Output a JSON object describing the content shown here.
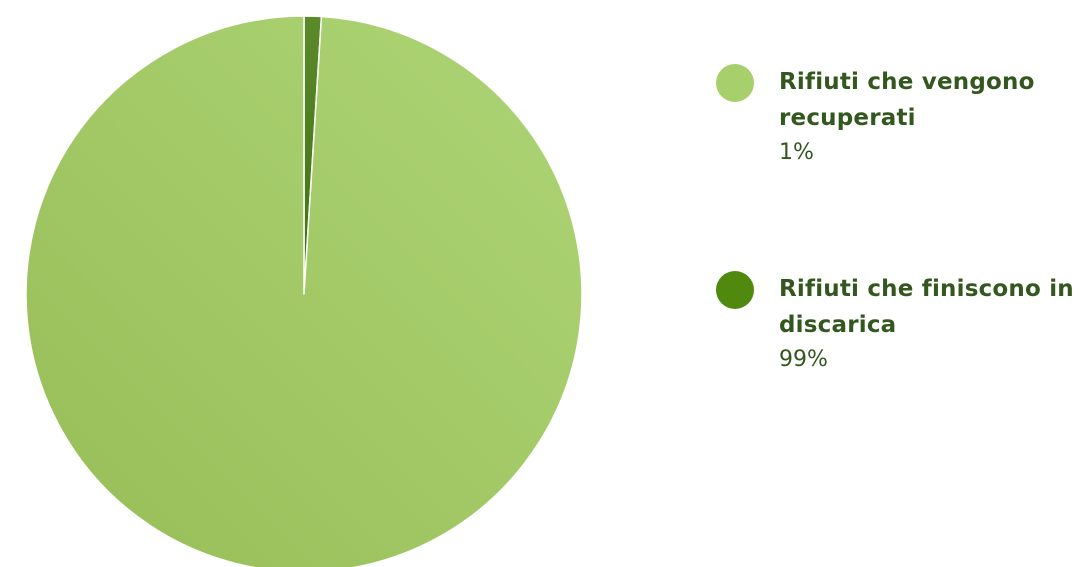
{
  "chart_data": {
    "type": "pie",
    "title": "",
    "slices": [
      {
        "label": "Rifiuti che vengono recuperati",
        "value": 1,
        "value_label": "1%",
        "color": "#a7cf6c"
      },
      {
        "label": "Rifiuti che finiscono in discarica",
        "value": 99,
        "value_label": "99%",
        "color": "#4f8a0f"
      }
    ],
    "legend_position": "right"
  },
  "legend": {
    "items": [
      {
        "label": "Rifiuti che vengono recuperati",
        "value": "1%",
        "color": "#a7cf6c"
      },
      {
        "label": "Rifiuti che finiscono in discarica",
        "value": "99%",
        "color": "#4f8a0f"
      }
    ]
  }
}
